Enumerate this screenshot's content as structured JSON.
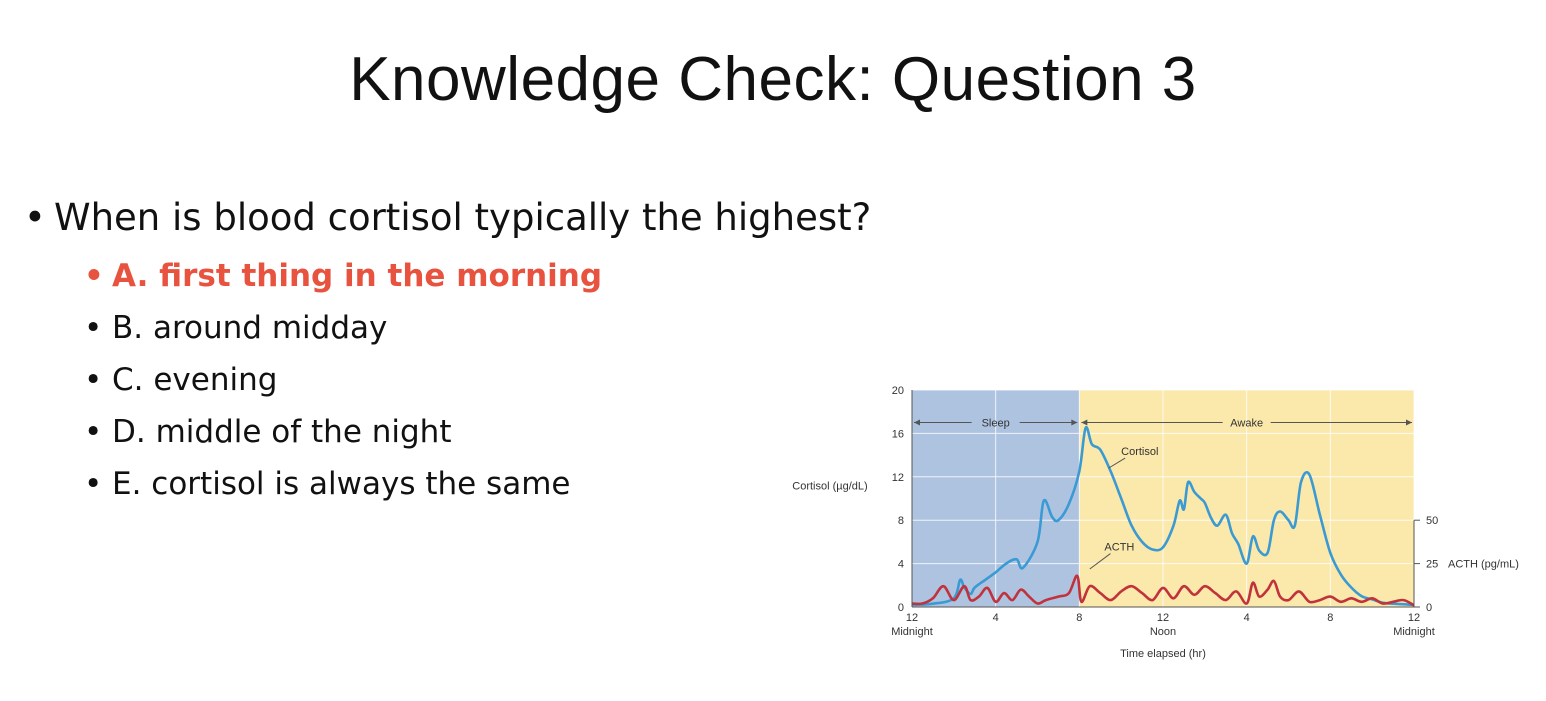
{
  "slide": {
    "title": "Knowledge Check: Question 3",
    "question": "When is blood cortisol typically the highest?",
    "options": [
      {
        "label": "A. first thing in the morning",
        "correct": true
      },
      {
        "label": "B. around midday",
        "correct": false
      },
      {
        "label": "C. evening",
        "correct": false
      },
      {
        "label": "D. middle of the night",
        "correct": false
      },
      {
        "label": "E. cortisol is always the same",
        "correct": false
      }
    ]
  },
  "colors": {
    "accent_correct": "#e8533f",
    "sleep_band": "#aec3e0",
    "awake_band": "#fbe8ab",
    "cortisol_line": "#3a9ad3",
    "acth_line": "#c0323c"
  },
  "chart_data": {
    "type": "line",
    "xlabel": "Time elapsed (hr)",
    "ylabel_left": "Cortisol (µg/dL)",
    "ylabel_right": "ACTH (pg/mL)",
    "x_range": [
      0,
      24
    ],
    "ylim_left": [
      0,
      20
    ],
    "ylim_right": [
      0,
      50
    ],
    "yticks_left": [
      "0",
      "4",
      "8",
      "12",
      "16",
      "20"
    ],
    "yticks_right": [
      "0",
      "25",
      "50"
    ],
    "xtick_labels": [
      {
        "x": 0,
        "top": "12",
        "bottom": "Midnight"
      },
      {
        "x": 4,
        "top": "4",
        "bottom": ""
      },
      {
        "x": 8,
        "top": "8",
        "bottom": ""
      },
      {
        "x": 12,
        "top": "12",
        "bottom": "Noon"
      },
      {
        "x": 16,
        "top": "4",
        "bottom": ""
      },
      {
        "x": 20,
        "top": "8",
        "bottom": ""
      },
      {
        "x": 24,
        "top": "12",
        "bottom": "Midnight"
      }
    ],
    "regions": [
      {
        "name": "Sleep",
        "start": 0,
        "end": 8
      },
      {
        "name": "Awake",
        "start": 8,
        "end": 24
      }
    ],
    "series": [
      {
        "name": "Cortisol",
        "axis": "left",
        "x": [
          0,
          1,
          2,
          2.3,
          2.5,
          2.8,
          3,
          3.5,
          4,
          4.5,
          5,
          5.3,
          6,
          6.3,
          6.7,
          7,
          7.5,
          8,
          8.3,
          8.6,
          9,
          9.5,
          10,
          10.5,
          11,
          11.5,
          12,
          12.5,
          12.8,
          13,
          13.2,
          13.5,
          13.8,
          14,
          14.3,
          14.6,
          15,
          15.3,
          15.6,
          16,
          16.3,
          16.6,
          17,
          17.3,
          17.6,
          18,
          18.3,
          18.6,
          19,
          19.5,
          20,
          20.5,
          21,
          21.5,
          22,
          22.5,
          23,
          24
        ],
        "y": [
          0.2,
          0.3,
          0.8,
          2.5,
          1.8,
          1.2,
          1.8,
          2.5,
          3.2,
          4.0,
          4.4,
          3.6,
          6.0,
          9.8,
          8.3,
          8.0,
          9.5,
          12.5,
          16.5,
          15.0,
          14.5,
          12.5,
          10.0,
          7.5,
          6.0,
          5.3,
          5.5,
          7.5,
          9.8,
          9.0,
          11.5,
          10.6,
          10.0,
          9.6,
          8.2,
          7.5,
          8.5,
          6.8,
          5.8,
          4.0,
          6.5,
          5.2,
          5.0,
          8.0,
          8.8,
          8.0,
          7.5,
          11.5,
          12.2,
          8.5,
          5.0,
          3.0,
          1.8,
          1.0,
          0.7,
          0.4,
          0.3,
          0.2
        ]
      },
      {
        "name": "ACTH",
        "axis": "right",
        "x": [
          0,
          0.5,
          1,
          1.5,
          2,
          2.5,
          2.8,
          3.2,
          3.6,
          4,
          4.4,
          4.8,
          5.2,
          5.6,
          6,
          6.4,
          7,
          7.5,
          7.9,
          8.1,
          8.5,
          9,
          9.5,
          10,
          10.5,
          11,
          11.5,
          12,
          12.5,
          13,
          13.5,
          14,
          14.5,
          15,
          15.5,
          16,
          16.3,
          16.6,
          17,
          17.3,
          17.6,
          18,
          18.5,
          19,
          19.5,
          20,
          20.5,
          21,
          21.5,
          22,
          22.5,
          23,
          23.5,
          24
        ],
        "y": [
          2,
          2,
          5,
          12,
          4,
          12,
          4,
          6,
          11,
          3,
          8,
          4,
          10,
          6,
          2,
          4,
          6,
          8,
          18,
          3,
          12,
          8,
          4,
          9,
          12,
          8,
          4,
          11,
          5,
          12,
          7,
          12,
          8,
          4,
          9,
          2,
          14,
          6,
          10,
          15,
          6,
          4,
          9,
          3,
          4,
          6,
          3,
          5,
          3,
          5,
          2,
          3,
          4,
          1
        ]
      }
    ],
    "annotations": [
      {
        "text": "Sleep",
        "x": 4,
        "y": 17
      },
      {
        "text": "Awake",
        "x": 16,
        "y": 17
      },
      {
        "text": "Cortisol",
        "x": 10,
        "y": 14
      },
      {
        "text": "ACTH",
        "x": 9.2,
        "y": 5.2
      }
    ]
  }
}
